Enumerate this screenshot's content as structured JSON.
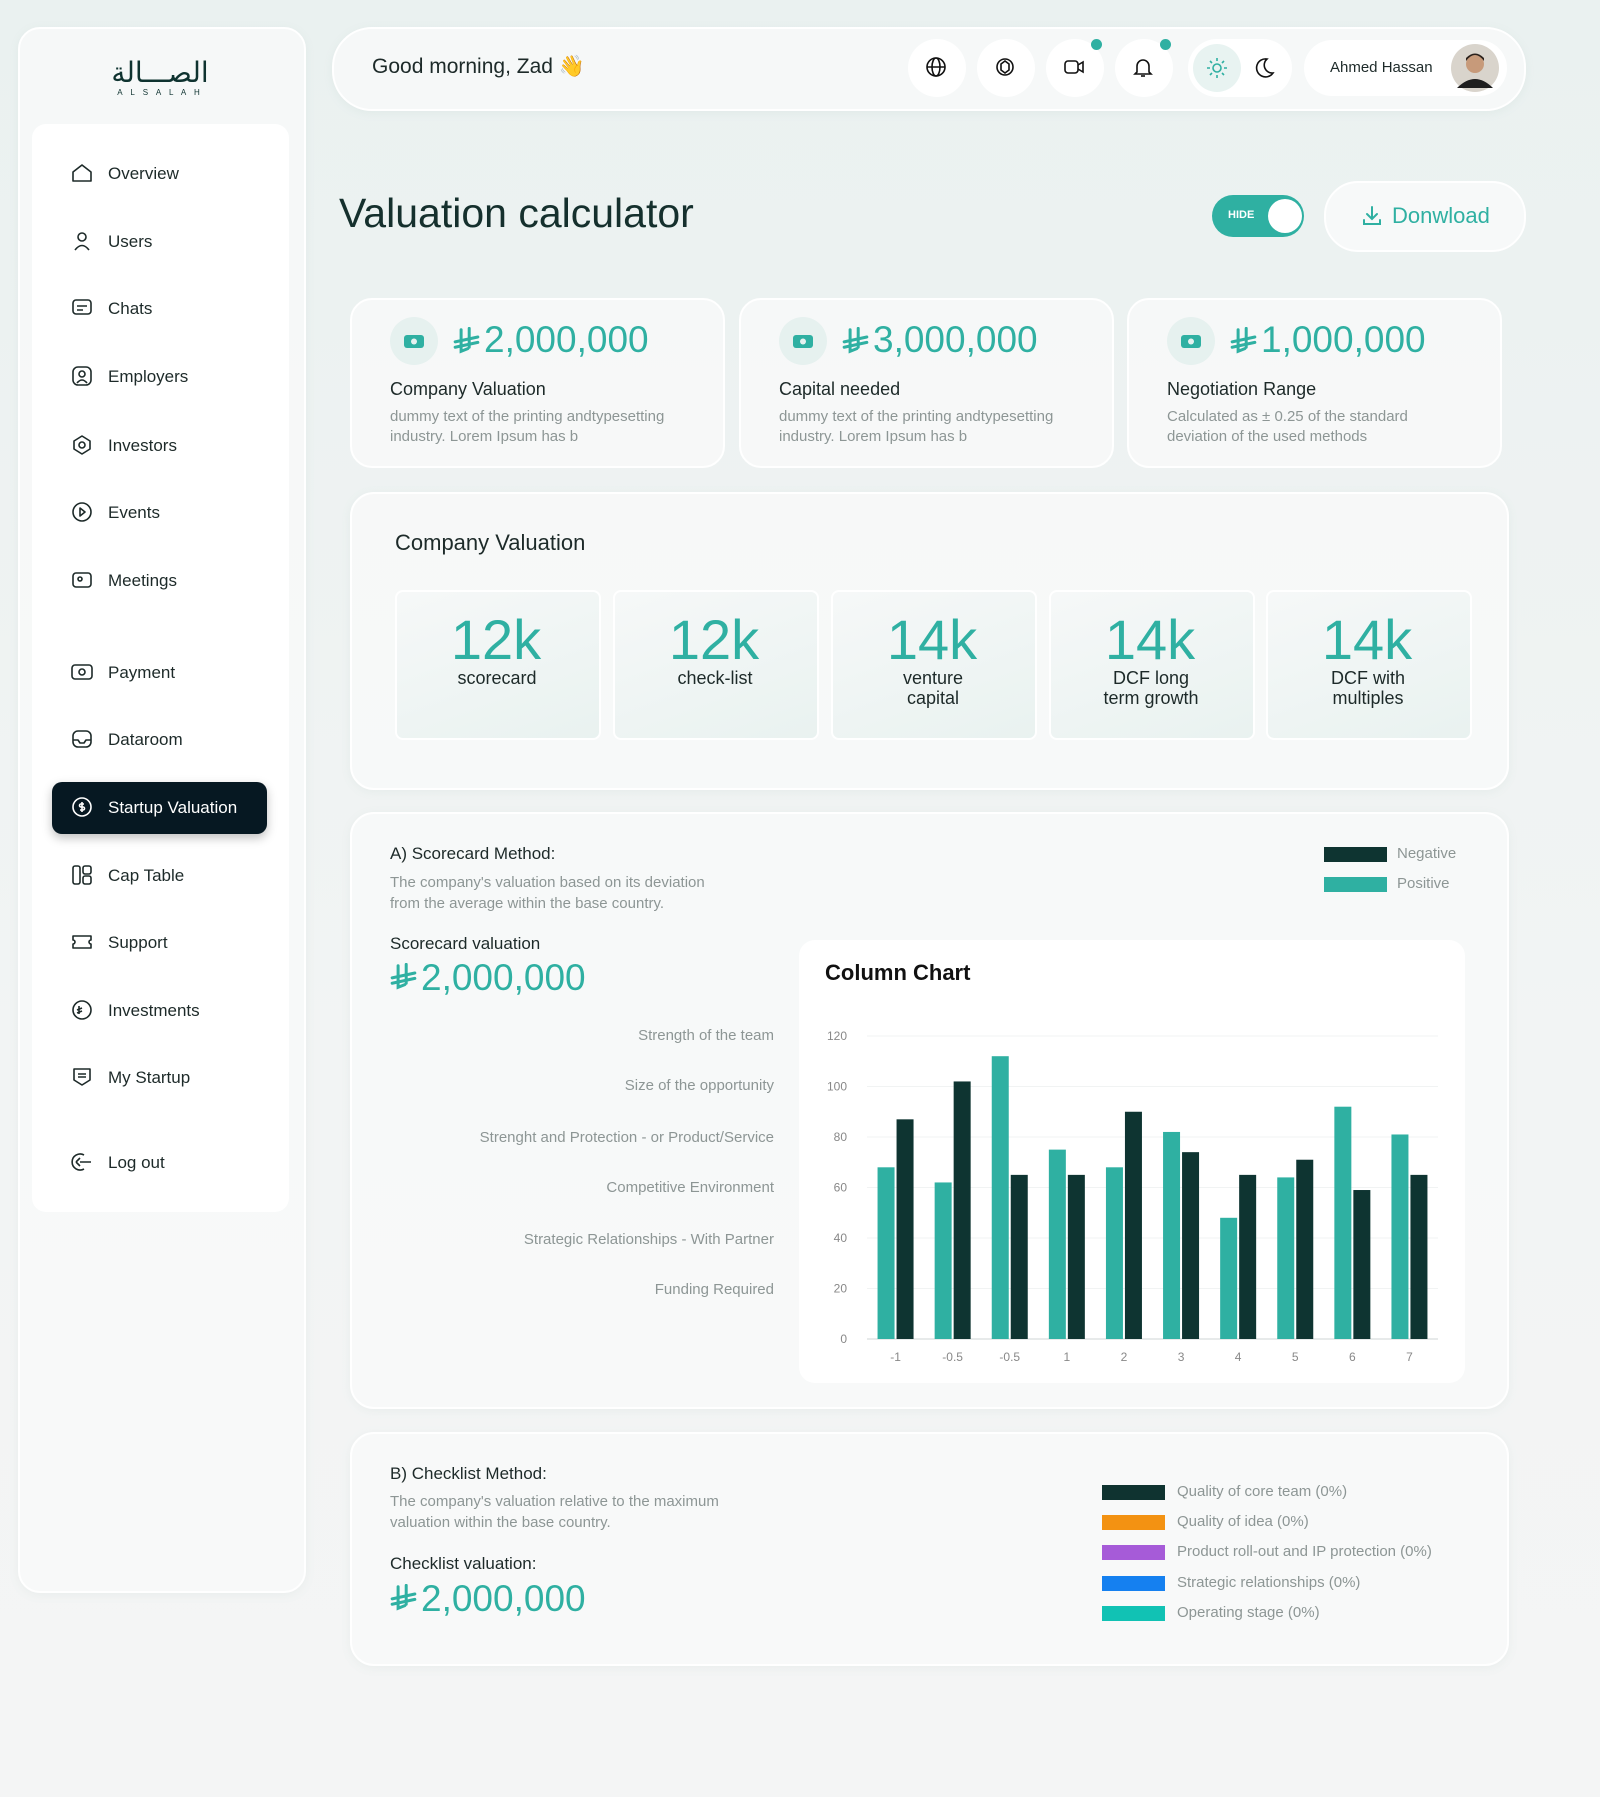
{
  "sidebar": {
    "logo_arabic": "الصـــالة",
    "logo_latin": "A L S A L A H",
    "nav": [
      "Overview",
      "Users",
      "Chats",
      "Employers",
      "Investors",
      "Events",
      "Meetings",
      "Payment",
      "Dataroom",
      "Startup Valuation",
      "Cap Table",
      "Support",
      "Investments",
      "My Startup"
    ],
    "logout": "Log out"
  },
  "header": {
    "greeting": "Good morning, Zad 👋",
    "user_name": "Ahmed Hassan"
  },
  "page": {
    "title": "Valuation calculator",
    "toggle_label": "HIDE",
    "download": "Donwload"
  },
  "summary_cards": [
    {
      "amount": "2,000,000",
      "title": "Company Valuation",
      "description": "dummy text of the printing andtypesetting industry. Lorem Ipsum has b"
    },
    {
      "amount": "3,000,000",
      "title": "Capital needed",
      "description": "dummy text of the printing andtypesetting industry. Lorem Ipsum has b"
    },
    {
      "amount": "1,000,000",
      "title": "Negotiation Range",
      "description": "Calculated as ± 0.25 of the standard deviation of the used methods"
    }
  ],
  "company_valuation": {
    "title": "Company Valuation",
    "methods": [
      {
        "value": "12k",
        "label": "scorecard"
      },
      {
        "value": "12k",
        "label": "check-list"
      },
      {
        "value": "14k",
        "label": "venture capital"
      },
      {
        "value": "14k",
        "label": "DCF long term growth"
      },
      {
        "value": "14k",
        "label": "DCF with multiples"
      }
    ]
  },
  "scorecard": {
    "title": "A) Scorecard Method:",
    "description": "The company's valuation based on its deviation from the average within the base country.",
    "valuation_label": "Scorecard valuation",
    "valuation": "2,000,000",
    "factors": [
      "Strength of the team",
      "Size of the opportunity",
      "Strenght and Protection - or Product/Service",
      "Competitive Environment",
      "Strategic Relationships - With Partner",
      "Funding Required"
    ],
    "chart": {
      "type": "bar",
      "title": "Column Chart",
      "categories": [
        "-1",
        "-0.5",
        "-0.5",
        "1",
        "2",
        "3",
        "4",
        "5",
        "6",
        "7"
      ],
      "series": [
        {
          "name": "Negative",
          "color": "#0e3431",
          "values": [
            87,
            102,
            65,
            65,
            90,
            74,
            65,
            71,
            59,
            65
          ]
        },
        {
          "name": "Positive",
          "color": "#2fb0a2",
          "values": [
            68,
            62,
            112,
            75,
            68,
            82,
            48,
            64,
            92,
            81
          ]
        }
      ],
      "ylim": [
        0,
        120
      ],
      "yticks": [
        0,
        20,
        40,
        60,
        80,
        100,
        120
      ],
      "grid": true
    }
  },
  "checklist": {
    "title": "B) Checklist Method:",
    "description": "The company's valuation relative to the maximum valuation within the base country.",
    "valuation_label": "Checklist valuation:",
    "valuation": "2,000,000",
    "legend": [
      {
        "label": "Quality of core team (0%)",
        "color": "#0f3330"
      },
      {
        "label": "Quality of idea (0%)",
        "color": "#f39212"
      },
      {
        "label": "Product roll-out and IP protection (0%)",
        "color": "#a65bd8"
      },
      {
        "label": "Strategic relationships (0%)",
        "color": "#1580f0"
      },
      {
        "label": "Operating stage (0%)",
        "color": "#11c2b4"
      }
    ]
  }
}
